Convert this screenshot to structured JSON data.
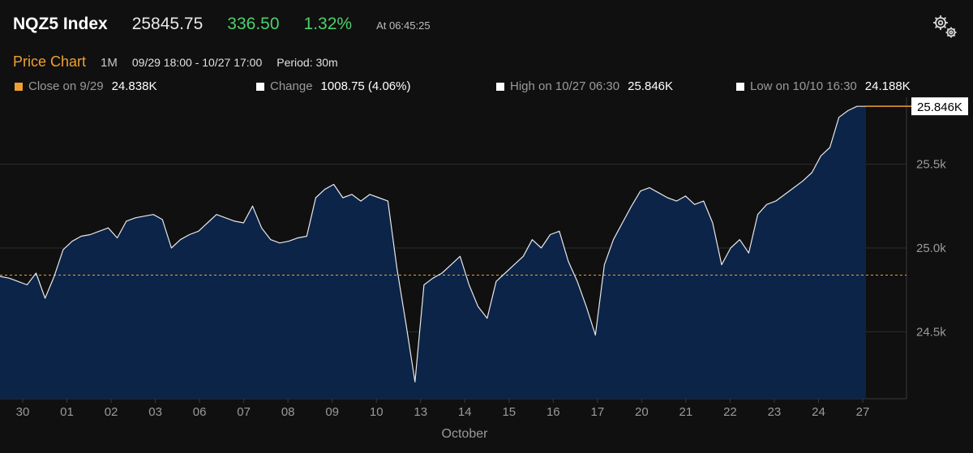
{
  "header": {
    "ticker": "NQZ5 Index",
    "last_price": "25845.75",
    "net_change": "336.50",
    "pct_change": "1.32%",
    "as_of": "At 06:45:25"
  },
  "subheader": {
    "title": "Price Chart",
    "range": "1M",
    "dates": "09/29 18:00 - 10/27 17:00",
    "period": "Period: 30m"
  },
  "stats": [
    {
      "label": "Close on 9/29",
      "value": "24.838K",
      "color": "#f0a030"
    },
    {
      "label": "Change",
      "value": "1008.75 (4.06%)",
      "color": "#ffffff"
    },
    {
      "label": "High on 10/27 06:30",
      "value": "25.846K",
      "color": "#ffffff"
    },
    {
      "label": "Low on 10/10 16:30",
      "value": "24.188K",
      "color": "#ffffff"
    }
  ],
  "colors": {
    "accent": "#f0a030",
    "positive": "#4cd06a",
    "area_fill": "#0c2448",
    "line": "#e8e8e8"
  },
  "icons": {
    "settings": "gear-icon"
  },
  "chart_data": {
    "type": "area",
    "x_month_label": "October",
    "x_ticks": [
      "30",
      "01",
      "02",
      "03",
      "06",
      "07",
      "08",
      "09",
      "10",
      "13",
      "14",
      "15",
      "16",
      "17",
      "20",
      "21",
      "22",
      "23",
      "24",
      "27"
    ],
    "y_ticks": [
      "24.5k",
      "25.0k",
      "25.5k"
    ],
    "y_tick_values": [
      24500,
      25000,
      25500
    ],
    "ylim": [
      24100,
      25900
    ],
    "reference_line": 24838,
    "last_value_label": "25.846K",
    "last_value": 25846,
    "grid": true,
    "series": [
      {
        "values": [
          24830,
          24820,
          24800,
          24780,
          24850,
          24700,
          24830,
          24990,
          25040,
          25070,
          25080,
          25100,
          25120,
          25060,
          25160,
          25180,
          25190,
          25200,
          25170,
          25000,
          25050,
          25080,
          25100,
          25150,
          25200,
          25180,
          25160,
          25150,
          25250,
          25120,
          25050,
          25030,
          25040,
          25060,
          25070,
          25300,
          25350,
          25380,
          25300,
          25320,
          25280,
          25320,
          25300,
          25280,
          24880,
          24550,
          24200,
          24780,
          24820,
          24850,
          24900,
          24950,
          24780,
          24650,
          24580,
          24800,
          24850,
          24900,
          24950,
          25050,
          25000,
          25080,
          25100,
          24920,
          24800,
          24650,
          24480,
          24900,
          25050,
          25150,
          25250,
          25340,
          25360,
          25330,
          25300,
          25280,
          25310,
          25260,
          25280,
          25150,
          24900,
          25000,
          25050,
          24970,
          25200,
          25260,
          25280,
          25320,
          25360,
          25400,
          25450,
          25550,
          25600,
          25780,
          25820,
          25846,
          25846
        ]
      }
    ]
  }
}
